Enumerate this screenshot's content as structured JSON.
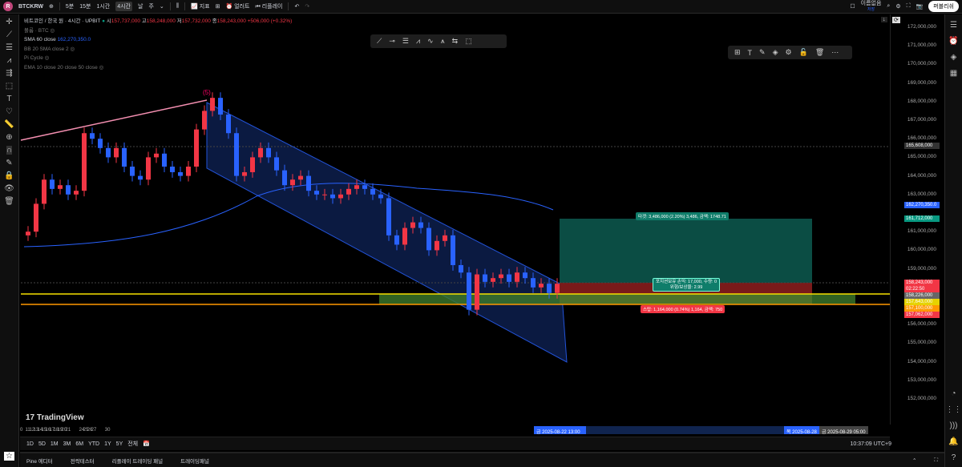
{
  "header": {
    "symbol": "BTCKRW",
    "intervals": [
      "5분",
      "15분",
      "1시간",
      "4시간",
      "날",
      "주"
    ],
    "active_interval": "4시간",
    "indicators": "지표",
    "alert": "얼러트",
    "replay": "리플레이",
    "layout_name": "이름없음",
    "layout_sub": "저장",
    "publish": "퍼블리쉬"
  },
  "legend": {
    "title": "비트코인 / 한국 원 · 4시간 · UPBIT",
    "o_label": "시",
    "o": "157,737,000",
    "h_label": "고",
    "h": "158,248,000",
    "l_label": "저",
    "l": "157,732,000",
    "c_label": "종",
    "c": "158,243,000",
    "change": "+506,000 (+0.32%)",
    "volume": "볼륨 · BTC",
    "sma": "SMA 60 close",
    "sma_val": "162,270,350.0",
    "bb": "BB 20 SMA close 2",
    "pi": "Pi Cycle",
    "ema": "EMA 10 close 20 close 50 close"
  },
  "price_axis": {
    "ticks": [
      "172,000,000",
      "171,000,000",
      "170,000,000",
      "169,000,000",
      "168,000,000",
      "167,000,000",
      "166,000,000",
      "165,000,000",
      "164,000,000",
      "163,000,000",
      "161,000,000",
      "160,000,000",
      "159,000,000",
      "156,000,000",
      "155,000,000",
      "154,000,000",
      "153,000,000",
      "152,000,000"
    ],
    "crosshair": "165,608,000",
    "sma_label": "162,270,350.0",
    "target": "161,712,000",
    "last": "158,243,000",
    "countdown": "02:22:50",
    "l2": "158,226,000",
    "l3": "157,643,000",
    "l4": "157,100,000",
    "stop": "157,062,000"
  },
  "position": {
    "target_text": "타겟: 3,486,000 (2.20%) 3,486, 금액: 1748.71",
    "mid_line1": "포지션보유 손익: 17,000, 수량: 0",
    "mid_line2": "위험/보상율: 2.99",
    "stop_text": "스탑: 1,164,000 (0.74%) 1,164, 금액: 750",
    "wave_label": "(5)"
  },
  "time_axis": {
    "ticks": [
      [
        "0",
        0
      ],
      [
        "11",
        182
      ],
      [
        "12",
        322
      ],
      [
        "13",
        462
      ],
      [
        "14",
        602
      ],
      [
        "15",
        742
      ],
      [
        "16",
        882
      ],
      [
        "17",
        1022
      ],
      [
        "18",
        1162
      ],
      [
        "19",
        1302
      ],
      [
        "20",
        1442
      ],
      [
        "21",
        1582
      ],
      [
        "24",
        2062
      ],
      [
        "25",
        2202
      ],
      [
        "26",
        2342
      ],
      [
        "27",
        2482
      ],
      [
        "30",
        2962
      ]
    ],
    "hl1": "금 2025-08-22  13:00",
    "hl2": "목 2025-08-28",
    "hl3": "금 2025-08-29  05:00"
  },
  "ranges": [
    "1D",
    "5D",
    "1M",
    "3M",
    "6M",
    "YTD",
    "1Y",
    "5Y",
    "전체"
  ],
  "clock": "10:37:09 UTC+9",
  "panels": [
    "Pine 에디터",
    "전략테스터",
    "리플레이 트레이딩 패널",
    "트레이딩패널"
  ],
  "brand": "TradingView",
  "colors": {
    "up": "#f23645",
    "down": "#2962ff",
    "target": "#0b4d44",
    "stop": "#7a1a1a"
  },
  "candles_close": [
    161,
    162.5,
    163.8,
    163.3,
    163.5,
    163,
    163.2,
    166.3,
    166,
    165.5,
    165,
    165.5,
    164.5,
    164,
    163.8,
    165,
    165.2,
    164.5,
    164.2,
    164,
    164.5,
    166.5,
    167.5,
    168.2,
    167.3,
    166.3,
    164,
    164.2,
    165,
    165.5,
    165,
    164.3,
    163.5,
    163.8,
    164,
    163.2,
    163,
    163,
    162.8,
    163,
    163.3,
    163.5,
    163.3,
    163,
    162.8,
    160.8,
    160.3,
    161.2,
    161.5,
    161.2,
    160,
    160.5,
    160.8,
    159.2,
    158.8,
    156.8,
    158.7,
    158.3,
    158.5,
    158.7,
    158.3,
    158.8,
    158.5,
    158,
    158.2,
    157.7,
    158.2
  ]
}
